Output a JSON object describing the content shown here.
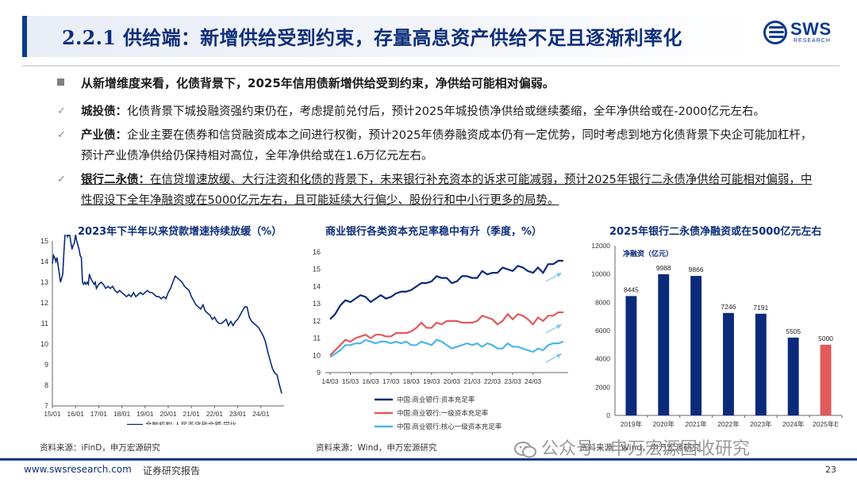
{
  "header": {
    "title": "2.2.1 供给端：新增供给受到约束，存量高息资产供给不足且逐渐利率化",
    "logo_text": "SWS",
    "logo_sub": "RESEARCH",
    "brand_color": "#0e3a8c"
  },
  "bullets": {
    "main": "从新增维度来看，化债背景下，2025年信用债新增供给受到约束，净供给可能相对偏弱。",
    "items": [
      {
        "label": "城投债：",
        "text": "化债背景下城投融资强约束仍在，考虑提前兑付后，预计2025年城投债净供给或继续萎缩，全年净供给或在-2000亿元左右。"
      },
      {
        "label": "产业债：",
        "text": "企业主要在债券和信贷融资成本之间进行权衡，预计2025年债券融资成本仍有一定优势，同时考虑到地方化债背景下央企可能加杠杆，预计产业债净供给仍保持相对高位，全年净供给或在1.6万亿元左右。"
      },
      {
        "label": "银行二永债：",
        "text": "在信贷增速放缓、大行注资和化债的背景下，未来银行补充资本的诉求可能减弱，预计2025年银行二永债净供给可能相对偏弱，中性假设下全年净融资或在5000亿元左右，且可能延续大行偏少、股份行和中小行更多的局势。"
      }
    ]
  },
  "charts": {
    "c1": {
      "title": "2023年下半年以来贷款增速持续放缓（%）",
      "source": "资料来源：iFinD，申万宏源研究"
    },
    "c2": {
      "title": "商业银行各类资本充足率稳中有升（季度，%）",
      "source": "资料来源：Wind，申万宏源研究"
    },
    "c3": {
      "title": "2025年银行二永债净融资或在5000亿元左右",
      "source": "资料来源：Wind，申万宏源研究"
    }
  },
  "chart_data": [
    {
      "type": "line",
      "title": "2023年下半年以来贷款增速持续放缓（%）",
      "x_ticks": [
        "15/01",
        "16/01",
        "17/01",
        "18/01",
        "19/01",
        "20/01",
        "21/01",
        "22/01",
        "23/01",
        "24/01"
      ],
      "ylim": [
        7,
        15
      ],
      "y_ticks": [
        7,
        8,
        9,
        10,
        11,
        12,
        13,
        14,
        15
      ],
      "series": [
        {
          "name": "金融机构:人民币贷款余额:同比",
          "color": "#0b2a7a",
          "x": [
            0,
            0.05,
            0.1,
            0.15,
            0.2,
            0.25,
            0.3,
            0.35,
            0.4,
            0.45,
            0.5,
            0.55,
            0.6,
            0.65,
            0.7,
            0.75,
            0.8,
            0.85,
            0.9,
            0.95,
            1.0,
            1.05,
            1.1,
            1.15,
            1.2,
            1.25,
            1.3,
            1.35,
            1.4,
            1.45,
            1.5,
            1.55,
            1.6,
            1.65,
            1.7,
            1.75,
            1.8,
            1.85,
            1.9,
            1.95,
            2.0,
            2.1,
            2.2,
            2.3,
            2.4,
            2.5,
            2.6,
            2.7,
            2.8,
            2.9,
            3.0,
            3.1,
            3.2,
            3.3,
            3.4,
            3.5,
            3.6,
            3.7,
            3.8,
            3.9,
            4.0,
            4.1,
            4.2,
            4.3,
            4.4,
            4.5,
            4.6,
            4.7,
            4.8,
            4.9,
            5.0,
            5.1,
            5.2,
            5.3,
            5.4,
            5.5,
            5.6,
            5.7,
            5.8,
            5.9,
            6.0,
            6.1,
            6.2,
            6.3,
            6.4,
            6.5,
            6.6,
            6.7,
            6.8,
            6.9,
            7.0,
            7.1,
            7.2,
            7.3,
            7.4,
            7.5,
            7.6,
            7.7,
            7.8,
            7.9,
            8.0,
            8.1,
            8.2,
            8.3,
            8.4,
            8.5,
            8.6,
            8.7,
            8.8,
            8.9,
            9.0,
            9.1,
            9.2,
            9.3,
            9.4,
            9.5,
            9.6,
            9.7,
            9.8,
            9.9
          ],
          "y": [
            13.9,
            14.3,
            14.2,
            14.0,
            14.2,
            13.8,
            13.4,
            13.0,
            13.2,
            13.4,
            14.5,
            15.4,
            15.4,
            15.2,
            15.3,
            15.3,
            14.9,
            14.6,
            14.8,
            14.9,
            15.3,
            15.0,
            14.8,
            14.6,
            14.3,
            14.2,
            13.0,
            12.9,
            13.0,
            12.9,
            13.0,
            12.9,
            13.4,
            13.2,
            13.1,
            13.0,
            12.9,
            13.0,
            12.7,
            12.8,
            12.9,
            13.0,
            12.9,
            12.7,
            12.8,
            12.7,
            12.8,
            12.6,
            12.5,
            12.6,
            12.5,
            12.4,
            12.3,
            12.4,
            12.3,
            12.5,
            12.3,
            12.4,
            12.5,
            12.4,
            12.5,
            12.6,
            12.5,
            12.5,
            12.4,
            12.3,
            12.3,
            12.2,
            12.3,
            12.2,
            12.5,
            12.7,
            13.0,
            13.3,
            13.2,
            13.1,
            13.0,
            12.8,
            12.7,
            12.6,
            12.3,
            12.1,
            11.9,
            11.8,
            11.7,
            11.9,
            11.6,
            11.5,
            11.4,
            11.2,
            11.3,
            11.1,
            11.0,
            11.0,
            11.1,
            11.2,
            10.9,
            11.1,
            10.9,
            11.1,
            11.2,
            11.4,
            11.6,
            11.8,
            11.8,
            11.3,
            11.1,
            11.0,
            10.9,
            10.8,
            10.6,
            10.4,
            10.1,
            9.6,
            9.2,
            8.8,
            8.6,
            8.5,
            8.0,
            7.6
          ]
        }
      ]
    },
    {
      "type": "line",
      "title": "商业银行各类资本充足率稳中有升（季度，%）",
      "x_ticks": [
        "14/03",
        "15/03",
        "16/03",
        "17/03",
        "18/03",
        "19/03",
        "20/03",
        "21/03",
        "22/03",
        "23/03",
        "24/03"
      ],
      "ylim": [
        9,
        16
      ],
      "y_ticks": [
        9,
        10,
        11,
        12,
        13,
        14,
        15,
        16
      ],
      "series": [
        {
          "name": "中国:商业银行:资本充足率",
          "color": "#0b2a7a",
          "values": [
            12.1,
            12.4,
            12.9,
            13.2,
            13.1,
            13.3,
            13.5,
            13.4,
            13.1,
            13.3,
            13.5,
            13.3,
            13.4,
            13.6,
            13.7,
            13.7,
            13.8,
            14.0,
            14.2,
            14.2,
            14.3,
            14.6,
            14.5,
            14.5,
            14.2,
            14.3,
            14.6,
            14.6,
            14.5,
            14.5,
            14.9,
            14.7,
            14.8,
            14.8,
            15.1,
            15.0,
            14.9,
            15.2,
            15.1,
            14.9,
            14.8,
            15.1,
            14.8,
            15.3,
            15.3,
            15.5,
            15.5
          ]
        },
        {
          "name": "中国:商业银行:一级资本充足率",
          "color": "#e05a5a",
          "values": [
            10.0,
            10.3,
            10.6,
            10.9,
            10.8,
            11.0,
            11.1,
            11.2,
            11.0,
            11.2,
            11.2,
            11.1,
            11.1,
            11.3,
            11.3,
            11.3,
            11.4,
            11.6,
            11.9,
            11.6,
            11.6,
            11.9,
            11.8,
            12.0,
            12.0,
            12.0,
            11.9,
            11.9,
            11.9,
            12.0,
            12.3,
            12.2,
            12.1,
            11.8,
            12.0,
            12.4,
            12.1,
            12.4,
            12.3,
            12.1,
            11.8,
            12.2,
            12.0,
            12.3,
            12.3,
            12.5,
            12.5
          ]
        },
        {
          "name": "中国:商业银行:核心一级资本充足率",
          "color": "#4fb6e8",
          "values": [
            9.9,
            10.1,
            10.3,
            10.6,
            10.6,
            10.7,
            10.7,
            10.9,
            10.8,
            10.7,
            10.8,
            10.8,
            10.7,
            10.8,
            10.7,
            10.8,
            10.6,
            10.6,
            10.8,
            10.7,
            10.6,
            10.9,
            10.8,
            10.6,
            10.4,
            10.5,
            10.6,
            10.7,
            10.6,
            10.7,
            10.5,
            10.7,
            10.6,
            10.4,
            10.4,
            10.7,
            10.5,
            10.5,
            10.4,
            10.3,
            10.2,
            10.4,
            10.3,
            10.6,
            10.7,
            10.7,
            10.8
          ]
        }
      ]
    },
    {
      "type": "bar",
      "title": "2025年银行二永债净融资或在5000亿元左右",
      "ylabel": "净融资（亿元）",
      "categories": [
        "2019年",
        "2020年",
        "2021年",
        "2022年",
        "2023年",
        "2024年",
        "2025年E"
      ],
      "values": [
        8445,
        9988,
        9866,
        7246,
        7191,
        5505,
        5000
      ],
      "colors": [
        "#0b2a7a",
        "#0b2a7a",
        "#0b2a7a",
        "#0b2a7a",
        "#0b2a7a",
        "#0b2a7a",
        "#e05a5a"
      ],
      "ylim": [
        0,
        12000
      ],
      "y_ticks": [
        0,
        2000,
        4000,
        6000,
        8000,
        10000,
        12000
      ]
    }
  ],
  "footer": {
    "url": "www.swsresearch.com",
    "report": "证券研究报告",
    "page": "23",
    "watermark": "公众号 · 申万宏源固收研究"
  }
}
